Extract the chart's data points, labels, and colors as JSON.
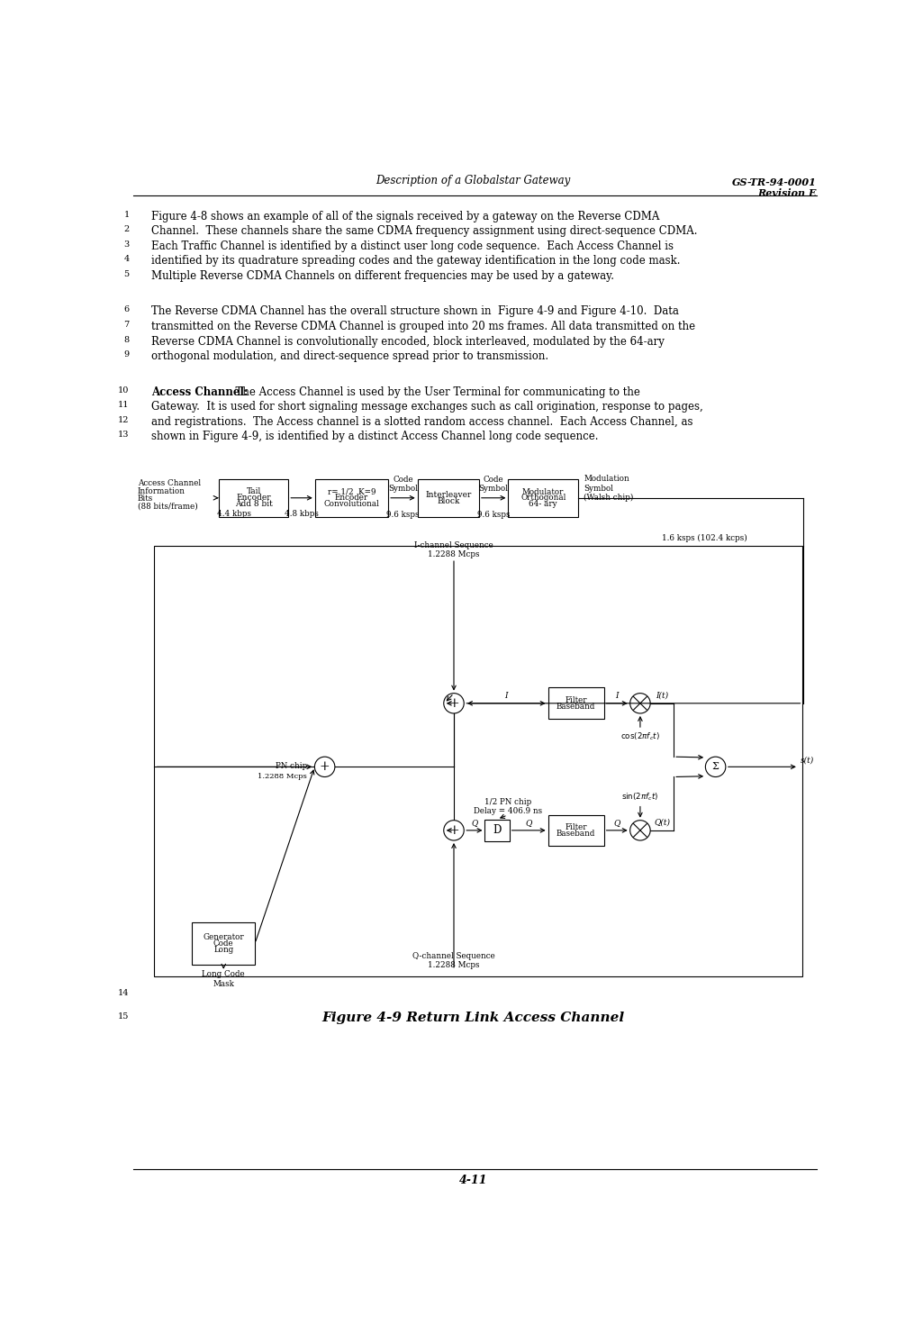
{
  "header_center": "Description of a Globalstar Gateway",
  "header_right_line1": "GS-TR-94-0001",
  "header_right_line2": "Revision E",
  "footer_center": "4-11",
  "paragraph1": [
    "Figure 4-8 shows an example of all of the signals received by a gateway on the Reverse CDMA",
    "Channel.  These channels share the same CDMA frequency assignment using direct-sequence CDMA.",
    "Each Traffic Channel is identified by a distinct user long code sequence.  Each Access Channel is",
    "identified by its quadrature spreading codes and the gateway identification in the long code mask.",
    "Multiple Reverse CDMA Channels on different frequencies may be used by a gateway."
  ],
  "paragraph2": [
    "The Reverse CDMA Channel has the overall structure shown in  Figure 4-9 and Figure 4-10.  Data",
    "transmitted on the Reverse CDMA Channel is grouped into 20 ms frames. All data transmitted on the",
    "Reverse CDMA Channel is convolutionally encoded, block interleaved, modulated by the 64-ary",
    "orthogonal modulation, and direct-sequence spread prior to transmission."
  ],
  "paragraph3_bold": "Access Channel:",
  "paragraph3_rest": [
    "  The Access Channel is used by the User Terminal for communicating to the",
    "Gateway.  It is used for short signaling message exchanges such as call origination, response to pages,",
    "and registrations.  The Access channel is a slotted random access channel.  Each Access Channel, as",
    "shown in Figure 4-9, is identified by a distinct Access Channel long code sequence."
  ],
  "line15_text": "Figure 4-9 Return Link Access Channel",
  "bg_color": "#ffffff",
  "text_color": "#000000"
}
